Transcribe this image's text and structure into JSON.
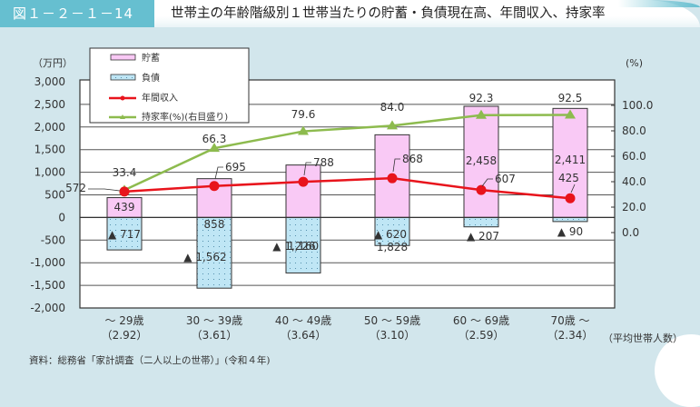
{
  "header": {
    "figure_number": "図１－２－１－14",
    "title": "世帯主の年齢階級別１世帯当たりの貯蓄・負債現在高、年間収入、持家率"
  },
  "axes": {
    "left_unit": "（万円）",
    "right_unit": "(%)",
    "left_ticks": [
      "3,000",
      "2,500",
      "2,000",
      "1,500",
      "1,000",
      "500",
      "0",
      "-500",
      "-1,000",
      "-1,500",
      "-2,000"
    ],
    "right_ticks": [
      "100.0",
      "80.0",
      "60.0",
      "40.0",
      "20.0",
      "0.0"
    ],
    "x_note": "（平均世帯人数）"
  },
  "legend": {
    "savings": "貯蓄",
    "debt": "負債",
    "income": "年間収入",
    "ownership": "持家率(%)(右目盛り)"
  },
  "source": "資料：総務省「家計調査（二人以上の世帯）」(令和４年)",
  "colors": {
    "background": "#d2e6ec",
    "header_accent": "#66bfd0",
    "savings_fill": "#f9c9f5",
    "debt_fill": "#bfe6f5",
    "income_line": "#e8141c",
    "ownership_line": "#8dbb4e"
  },
  "chart_data": {
    "type": "bar",
    "title": "世帯主の年齢階級別１世帯当たりの貯蓄・負債現在高、年間収入、持家率",
    "categories": [
      "～ 29歳",
      "30 ～ 39歳",
      "40 ～ 49歳",
      "50 ～ 59歳",
      "60 ～ 69歳",
      "70歳 ～"
    ],
    "household_size": [
      "（2.92）",
      "（3.61）",
      "（3.64）",
      "（3.10）",
      "（2.59）",
      "（2.34）"
    ],
    "series": [
      {
        "name": "貯蓄",
        "type": "bar",
        "axis": "left",
        "values": [
          439,
          858,
          1160,
          1828,
          2458,
          2411
        ],
        "labels": [
          "439",
          "858",
          "1,160",
          "1,828",
          "2,458",
          "2,411"
        ]
      },
      {
        "name": "負債",
        "type": "bar",
        "axis": "left",
        "values": [
          -717,
          -1562,
          -1226,
          -620,
          -207,
          -90
        ],
        "labels": [
          "▲ 717",
          "▲ 1,562",
          "▲ 1,226",
          "▲ 620",
          "▲ 207",
          "▲ 90"
        ]
      },
      {
        "name": "年間収入",
        "type": "line",
        "axis": "left",
        "values": [
          572,
          695,
          788,
          868,
          607,
          425
        ],
        "labels": [
          "572",
          "695",
          "788",
          "868",
          "607",
          "425"
        ]
      },
      {
        "name": "持家率(%)(右目盛り)",
        "type": "line",
        "axis": "right",
        "values": [
          33.4,
          66.3,
          79.6,
          84.0,
          92.3,
          92.5
        ],
        "labels": [
          "33.4",
          "66.3",
          "79.6",
          "84.0",
          "92.3",
          "92.5"
        ]
      }
    ],
    "ylabel": "（万円）",
    "ylim": [
      -2000,
      3000
    ],
    "y2label": "(%)",
    "y2lim": [
      -71.4,
      107.1
    ],
    "y2_ticks": [
      0,
      20,
      40,
      60,
      80,
      100
    ],
    "xlabel": "（平均世帯人数）",
    "grid": true,
    "legend_position": "upper-left inside"
  }
}
